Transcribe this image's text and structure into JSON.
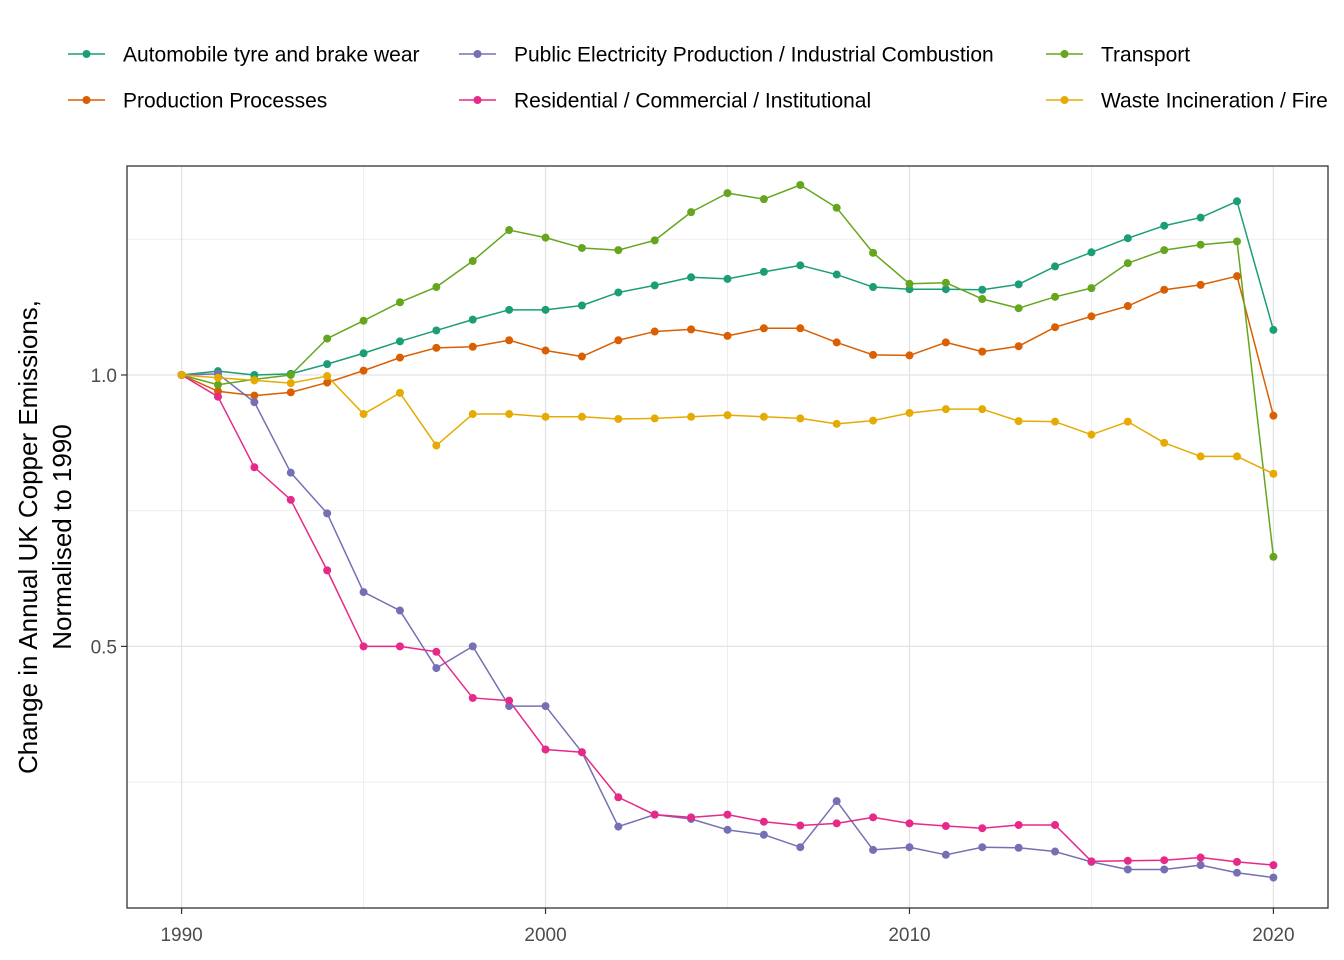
{
  "chart_data": {
    "type": "line",
    "title": "",
    "xlabel": "",
    "ylabel": [
      "Change in Annual UK Copper Emissions,",
      "Normalised to 1990"
    ],
    "x": [
      1990,
      1991,
      1992,
      1993,
      1994,
      1995,
      1996,
      1997,
      1998,
      1999,
      2000,
      2001,
      2002,
      2003,
      2004,
      2005,
      2006,
      2007,
      2008,
      2009,
      2010,
      2011,
      2012,
      2013,
      2014,
      2015,
      2016,
      2017,
      2018,
      2019,
      2020
    ],
    "xlim": [
      1988.5,
      2021.5
    ],
    "ylim": [
      0.018,
      1.385
    ],
    "x_ticks": [
      1990,
      2000,
      2010,
      2020
    ],
    "x_tick_labels": [
      "1990",
      "2000",
      "2010",
      "2020"
    ],
    "y_ticks": [
      0.5,
      1.0
    ],
    "y_tick_labels": [
      "0.5",
      "1.0"
    ],
    "y_minor_ticks": [
      0.25,
      0.75,
      1.25
    ],
    "grid": true,
    "legend_position": "top",
    "series": [
      {
        "name": "Automobile tyre and brake wear",
        "color": "#1b9e77",
        "values": [
          1.0,
          1.007,
          1.0,
          1.002,
          1.02,
          1.04,
          1.062,
          1.082,
          1.102,
          1.12,
          1.12,
          1.128,
          1.152,
          1.165,
          1.18,
          1.177,
          1.19,
          1.202,
          1.185,
          1.162,
          1.158,
          1.158,
          1.157,
          1.167,
          1.2,
          1.226,
          1.252,
          1.275,
          1.29,
          1.32,
          1.083
        ]
      },
      {
        "name": "Production Processes",
        "color": "#d95f02",
        "values": [
          1.0,
          0.97,
          0.962,
          0.968,
          0.986,
          1.008,
          1.032,
          1.05,
          1.052,
          1.064,
          1.045,
          1.034,
          1.064,
          1.08,
          1.084,
          1.072,
          1.086,
          1.086,
          1.06,
          1.037,
          1.036,
          1.06,
          1.043,
          1.053,
          1.088,
          1.108,
          1.127,
          1.157,
          1.166,
          1.182,
          0.925
        ]
      },
      {
        "name": "Public Electricity Production / Industrial Combustion",
        "color": "#7570b3",
        "values": [
          1.0,
          1.002,
          0.95,
          0.82,
          0.745,
          0.6,
          0.566,
          0.46,
          0.5,
          0.39,
          0.39,
          0.305,
          0.168,
          0.19,
          0.182,
          0.162,
          0.153,
          0.13,
          0.215,
          0.125,
          0.13,
          0.116,
          0.13,
          0.129,
          0.122,
          0.103,
          0.089,
          0.089,
          0.097,
          0.083,
          0.074
        ]
      },
      {
        "name": "Residential / Commercial / Institutional",
        "color": "#e7298a",
        "values": [
          1.0,
          0.96,
          0.83,
          0.77,
          0.64,
          0.5,
          0.5,
          0.49,
          0.405,
          0.4,
          0.31,
          0.305,
          0.222,
          0.19,
          0.185,
          0.19,
          0.177,
          0.17,
          0.174,
          0.185,
          0.174,
          0.169,
          0.165,
          0.171,
          0.171,
          0.104,
          0.105,
          0.106,
          0.111,
          0.103,
          0.097
        ]
      },
      {
        "name": "Transport",
        "color": "#66a61e",
        "values": [
          1.0,
          0.982,
          0.992,
          1.0,
          1.067,
          1.1,
          1.134,
          1.162,
          1.21,
          1.267,
          1.253,
          1.234,
          1.23,
          1.248,
          1.3,
          1.335,
          1.324,
          1.35,
          1.308,
          1.225,
          1.168,
          1.17,
          1.14,
          1.123,
          1.144,
          1.16,
          1.206,
          1.23,
          1.24,
          1.246,
          0.665
        ]
      },
      {
        "name": "Waste Incineration / Fire",
        "color": "#e6ab02",
        "values": [
          1.0,
          0.995,
          0.99,
          0.985,
          0.998,
          0.928,
          0.967,
          0.87,
          0.928,
          0.928,
          0.923,
          0.923,
          0.919,
          0.92,
          0.923,
          0.926,
          0.923,
          0.92,
          0.91,
          0.916,
          0.93,
          0.937,
          0.937,
          0.915,
          0.914,
          0.89,
          0.914,
          0.875,
          0.85,
          0.85,
          0.818
        ]
      }
    ]
  }
}
